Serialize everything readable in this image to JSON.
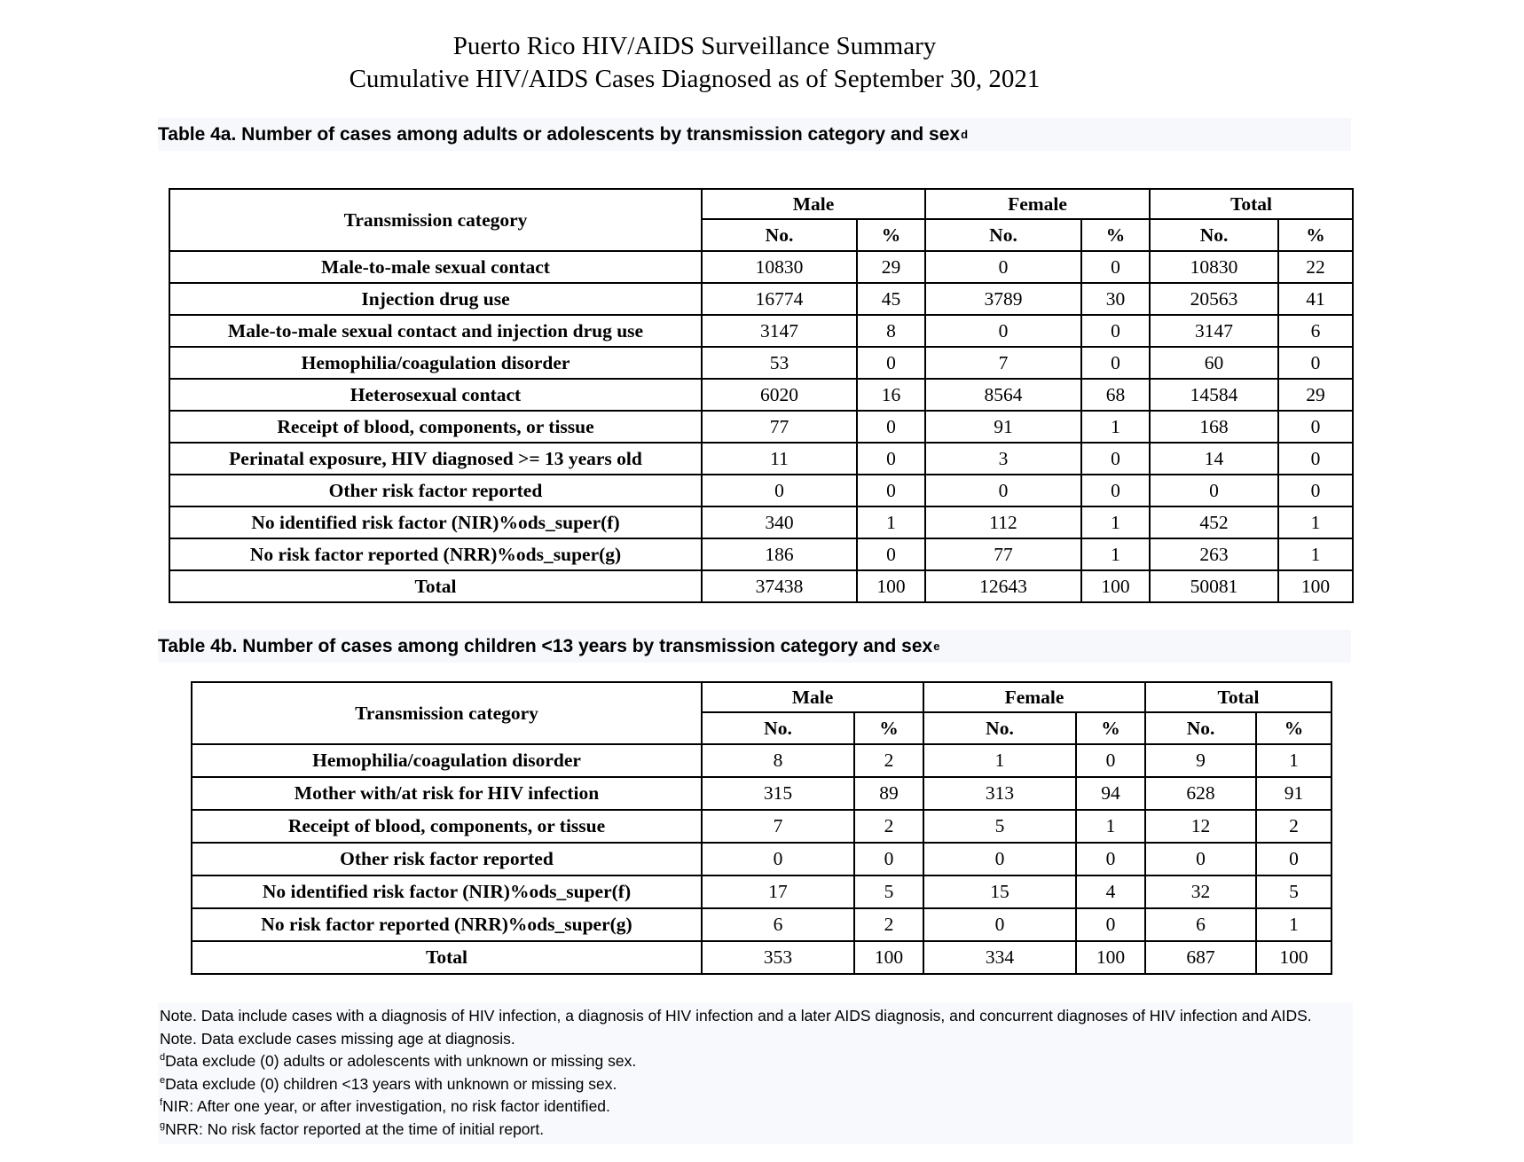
{
  "page_title": {
    "line1": "Puerto Rico HIV/AIDS Surveillance Summary",
    "line2": "Cumulative HIV/AIDS Cases Diagnosed as of September 30, 2021"
  },
  "tables": [
    {
      "caption": "Table 4a. Number of cases among adults or adolescents by transmission category and sex",
      "caption_sup": "d",
      "header": {
        "category": "Transmission category",
        "groups": [
          "Male",
          "Female",
          "Total"
        ],
        "sub_no": "No.",
        "sub_pct": "%"
      },
      "rows": [
        {
          "category": "Male-to-male sexual contact",
          "values": [
            "10830",
            "29",
            "0",
            "0",
            "10830",
            "22"
          ]
        },
        {
          "category": "Injection drug use",
          "values": [
            "16774",
            "45",
            "3789",
            "30",
            "20563",
            "41"
          ]
        },
        {
          "category": "Male-to-male sexual contact and injection drug use",
          "values": [
            "3147",
            "8",
            "0",
            "0",
            "3147",
            "6"
          ]
        },
        {
          "category": "Hemophilia/coagulation disorder",
          "values": [
            "53",
            "0",
            "7",
            "0",
            "60",
            "0"
          ]
        },
        {
          "category": "Heterosexual contact",
          "values": [
            "6020",
            "16",
            "8564",
            "68",
            "14584",
            "29"
          ]
        },
        {
          "category": "Receipt of blood, components, or tissue",
          "values": [
            "77",
            "0",
            "91",
            "1",
            "168",
            "0"
          ]
        },
        {
          "category": "Perinatal exposure, HIV diagnosed >= 13 years old",
          "values": [
            "11",
            "0",
            "3",
            "0",
            "14",
            "0"
          ]
        },
        {
          "category": "Other risk factor reported",
          "values": [
            "0",
            "0",
            "0",
            "0",
            "0",
            "0"
          ]
        },
        {
          "category": "No identified risk factor (NIR)%ods_super(f)",
          "values": [
            "340",
            "1",
            "112",
            "1",
            "452",
            "1"
          ]
        },
        {
          "category": "No risk factor reported (NRR)%ods_super(g)",
          "values": [
            "186",
            "0",
            "77",
            "1",
            "263",
            "1"
          ]
        },
        {
          "category": "Total",
          "values": [
            "37438",
            "100",
            "12643",
            "100",
            "50081",
            "100"
          ]
        }
      ]
    },
    {
      "caption": "Table 4b. Number of cases among children <13 years by transmission category and sex",
      "caption_sup": "e",
      "header": {
        "category": "Transmission category",
        "groups": [
          "Male",
          "Female",
          "Total"
        ],
        "sub_no": "No.",
        "sub_pct": "%"
      },
      "rows": [
        {
          "category": "Hemophilia/coagulation disorder",
          "values": [
            "8",
            "2",
            "1",
            "0",
            "9",
            "1"
          ]
        },
        {
          "category": "Mother with/at risk for HIV infection",
          "values": [
            "315",
            "89",
            "313",
            "94",
            "628",
            "91"
          ]
        },
        {
          "category": "Receipt of blood, components, or tissue",
          "values": [
            "7",
            "2",
            "5",
            "1",
            "12",
            "2"
          ]
        },
        {
          "category": "Other risk factor reported",
          "values": [
            "0",
            "0",
            "0",
            "0",
            "0",
            "0"
          ]
        },
        {
          "category": "No identified risk factor (NIR)%ods_super(f)",
          "values": [
            "17",
            "5",
            "15",
            "4",
            "32",
            "5"
          ]
        },
        {
          "category": "No risk factor reported (NRR)%ods_super(g)",
          "values": [
            "6",
            "2",
            "0",
            "0",
            "6",
            "1"
          ]
        },
        {
          "category": "Total",
          "values": [
            "353",
            "100",
            "334",
            "100",
            "687",
            "100"
          ]
        }
      ]
    }
  ],
  "notes": [
    {
      "sup": "",
      "text": "Note. Data include cases with a diagnosis of HIV infection, a diagnosis of HIV infection and a later AIDS diagnosis, and concurrent diagnoses of HIV infection and AIDS."
    },
    {
      "sup": "",
      "text": "Note. Data exclude cases missing age at diagnosis."
    },
    {
      "sup": "d",
      "text": "Data exclude (0) adults or adolescents with unknown or missing sex."
    },
    {
      "sup": "e",
      "text": "Data exclude (0) children <13 years with unknown or missing sex."
    },
    {
      "sup": "f",
      "text": "NIR: After one year, or after investigation, no risk factor identified."
    },
    {
      "sup": "g",
      "text": "NRR: No risk factor reported at the time of initial report."
    }
  ]
}
